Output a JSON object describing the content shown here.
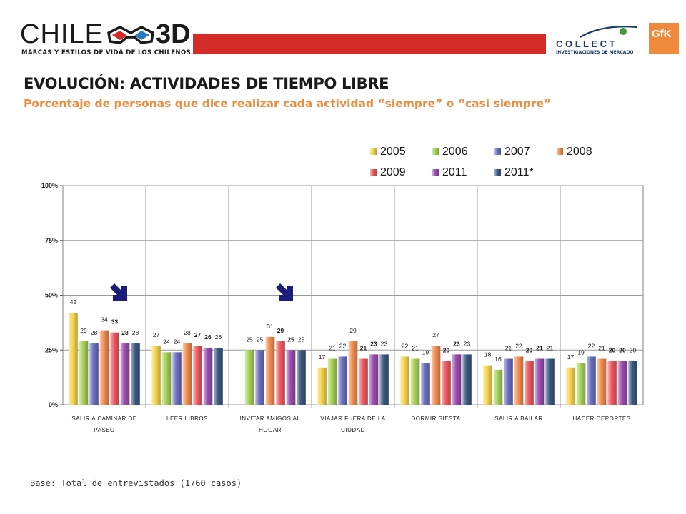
{
  "header": {
    "brand_name": "CHILE",
    "brand_suffix": "3D",
    "brand_tagline": "MARCAS Y ESTILOS DE VIDA DE LOS CHILENOS",
    "partner_name": "C O L L E C T",
    "partner_tagline": "INVESTIGACIONES DE MERCADO",
    "partner_badge": "GfK"
  },
  "title": "EVOLUCIÓN: ACTIVIDADES DE TIEMPO LIBRE",
  "subtitle": "Porcentaje de personas que dice realizar cada actividad “siempre” o “casi siempre”",
  "footer_note": "Base: Total de entrevistados (1760 casos)",
  "colors": {
    "red_bar": "#d32b27",
    "title": "#1a1a1a",
    "subtitle": "#f08a3c",
    "arrow": "#1c1d7a"
  },
  "chart_data": {
    "type": "bar",
    "categories": [
      [
        "SALIR A CAMINAR DE",
        "PASEO"
      ],
      [
        "LEER LIBROS"
      ],
      [
        "INVITAR AMIGOS AL",
        "HOGAR"
      ],
      [
        "VIAJAR FUERA DE LA",
        "CIUDAD"
      ],
      [
        "DORMIR SIESTA"
      ],
      [
        "SALIR A BAILAR"
      ],
      [
        "HACER DEPORTES"
      ]
    ],
    "series": [
      {
        "name": "2005",
        "color": "#f5d44a",
        "values": [
          42,
          27,
          null,
          17,
          22,
          18,
          17
        ]
      },
      {
        "name": "2006",
        "color": "#a6d156",
        "values": [
          29,
          24,
          25,
          21,
          21,
          16,
          19
        ]
      },
      {
        "name": "2007",
        "color": "#6a6fc0",
        "values": [
          28,
          24,
          25,
          22,
          19,
          21,
          22
        ]
      },
      {
        "name": "2008",
        "color": "#f28c4e",
        "values": [
          34,
          28,
          31,
          29,
          27,
          22,
          21
        ]
      },
      {
        "name": "2009",
        "color": "#ef5860",
        "values": [
          33,
          27,
          29,
          21,
          20,
          20,
          20
        ]
      },
      {
        "name": "2011",
        "color": "#9b4cb0",
        "values": [
          28,
          26,
          25,
          23,
          23,
          21,
          20
        ]
      },
      {
        "name": "2011*",
        "color": "#3a5a80",
        "values": [
          28,
          26,
          25,
          23,
          23,
          21,
          20
        ]
      }
    ],
    "bold_labels": [
      [
        false,
        false,
        false,
        false,
        true,
        true,
        false
      ],
      [
        false,
        false,
        false,
        false,
        true,
        true,
        false
      ],
      [
        false,
        false,
        false,
        false,
        true,
        true,
        false
      ],
      [
        false,
        false,
        false,
        false,
        true,
        true,
        false
      ],
      [
        false,
        false,
        false,
        false,
        true,
        true,
        false
      ],
      [
        false,
        false,
        false,
        false,
        true,
        true,
        false
      ],
      [
        false,
        false,
        false,
        false,
        true,
        true,
        false
      ]
    ],
    "y_ticks": [
      "0%",
      "25%",
      "50%",
      "75%",
      "100%"
    ],
    "ylim": [
      0,
      100
    ],
    "grid": true,
    "legend_position": "top-right",
    "arrow_marks": [
      "SALIR A CAMINAR DE PASEO",
      "INVITAR AMIGOS AL HOGAR"
    ]
  }
}
